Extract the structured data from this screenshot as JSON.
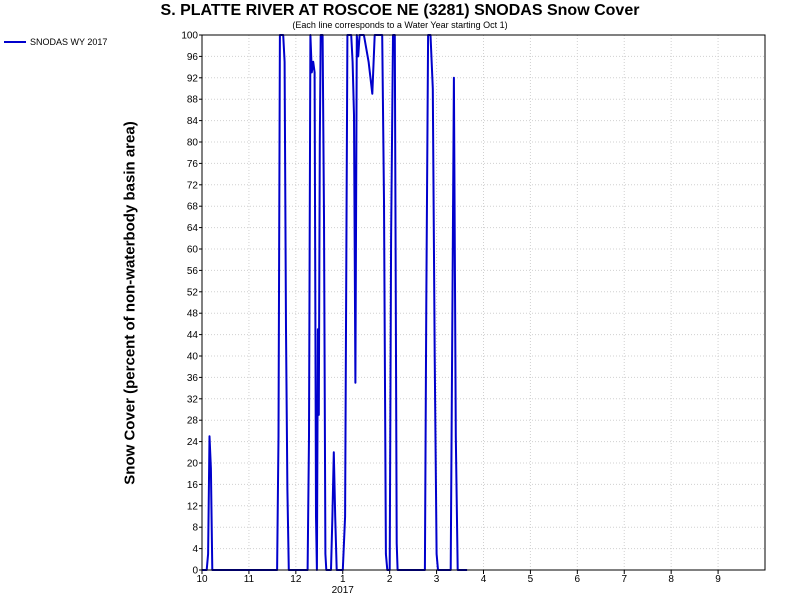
{
  "chart_data": {
    "type": "line",
    "title": "S. PLATTE RIVER AT ROSCOE NE (3281) SNODAS Snow Cover",
    "subtitle": "(Each line corresponds to a Water Year starting Oct 1)",
    "ylabel": "Snow Cover (percent of non-waterbody basin area)",
    "xlabel": "",
    "x_unit": "month (10 = Oct 1, 13 = Jan 1, 2017)",
    "xlim": [
      10,
      22
    ],
    "ylim": [
      0,
      100
    ],
    "x_ticks": [
      {
        "value": 10,
        "label": "10"
      },
      {
        "value": 11,
        "label": "11"
      },
      {
        "value": 12,
        "label": "12"
      },
      {
        "value": 13,
        "label": "1"
      },
      {
        "value": 14,
        "label": "2"
      },
      {
        "value": 15,
        "label": "3"
      },
      {
        "value": 16,
        "label": "4"
      },
      {
        "value": 17,
        "label": "5"
      },
      {
        "value": 18,
        "label": "6"
      },
      {
        "value": 19,
        "label": "7"
      },
      {
        "value": 20,
        "label": "8"
      },
      {
        "value": 21,
        "label": "9"
      }
    ],
    "x_sublabel": {
      "value": 13,
      "label": "2017"
    },
    "y_ticks": [
      0,
      4,
      8,
      12,
      16,
      20,
      24,
      28,
      32,
      36,
      40,
      44,
      48,
      52,
      56,
      60,
      64,
      68,
      72,
      76,
      80,
      84,
      88,
      92,
      96,
      100
    ],
    "grid": true,
    "legend_position": "outside-top-left",
    "series": [
      {
        "name": "SNODAS WY 2017",
        "color": "#0000cc",
        "points": [
          [
            10.0,
            0
          ],
          [
            10.1,
            0
          ],
          [
            10.13,
            3
          ],
          [
            10.16,
            25
          ],
          [
            10.19,
            19
          ],
          [
            10.22,
            0
          ],
          [
            11.6,
            0
          ],
          [
            11.63,
            25
          ],
          [
            11.66,
            100
          ],
          [
            11.73,
            100
          ],
          [
            11.76,
            95
          ],
          [
            11.79,
            45
          ],
          [
            11.82,
            15
          ],
          [
            11.85,
            0
          ],
          [
            12.25,
            0
          ],
          [
            12.28,
            25
          ],
          [
            12.31,
            100
          ],
          [
            12.34,
            93
          ],
          [
            12.37,
            95
          ],
          [
            12.4,
            93
          ],
          [
            12.43,
            10
          ],
          [
            12.45,
            0
          ],
          [
            12.47,
            45
          ],
          [
            12.49,
            29
          ],
          [
            12.51,
            80
          ],
          [
            12.53,
            100
          ],
          [
            12.57,
            100
          ],
          [
            12.6,
            66
          ],
          [
            12.63,
            3
          ],
          [
            12.65,
            0
          ],
          [
            12.75,
            0
          ],
          [
            12.78,
            10
          ],
          [
            12.81,
            22
          ],
          [
            12.84,
            10
          ],
          [
            12.87,
            0
          ],
          [
            13.0,
            0
          ],
          [
            13.05,
            10
          ],
          [
            13.1,
            100
          ],
          [
            13.18,
            100
          ],
          [
            13.21,
            95
          ],
          [
            13.24,
            85
          ],
          [
            13.27,
            35
          ],
          [
            13.3,
            100
          ],
          [
            13.33,
            96
          ],
          [
            13.36,
            100
          ],
          [
            13.45,
            100
          ],
          [
            13.55,
            95
          ],
          [
            13.63,
            89
          ],
          [
            13.68,
            100
          ],
          [
            13.78,
            100
          ],
          [
            13.84,
            100
          ],
          [
            13.88,
            69
          ],
          [
            13.92,
            3
          ],
          [
            13.95,
            0
          ],
          [
            14.0,
            0
          ],
          [
            14.03,
            62
          ],
          [
            14.07,
            100
          ],
          [
            14.11,
            100
          ],
          [
            14.15,
            5
          ],
          [
            14.17,
            0
          ],
          [
            14.75,
            0
          ],
          [
            14.78,
            50
          ],
          [
            14.82,
            100
          ],
          [
            14.87,
            100
          ],
          [
            14.92,
            90
          ],
          [
            14.96,
            40
          ],
          [
            15.0,
            3
          ],
          [
            15.03,
            0
          ],
          [
            15.3,
            0
          ],
          [
            15.33,
            40
          ],
          [
            15.37,
            92
          ],
          [
            15.41,
            25
          ],
          [
            15.45,
            0
          ],
          [
            15.65,
            0
          ]
        ]
      }
    ]
  }
}
